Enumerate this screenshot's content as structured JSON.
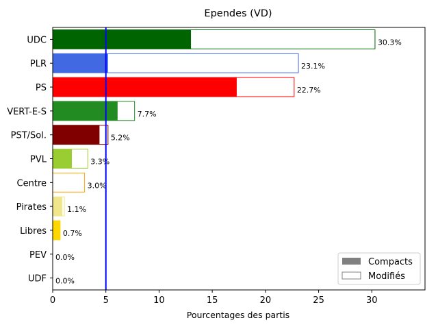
{
  "chart_data": {
    "type": "bar",
    "orientation": "horizontal",
    "title": "Ependes (VD)",
    "xlabel": "Pourcentages des partis",
    "ylabel": "",
    "xlim": [
      0,
      35
    ],
    "xticks": [
      0,
      5,
      10,
      15,
      20,
      25,
      30
    ],
    "threshold_line": {
      "x": 5,
      "color": "#0000ff"
    },
    "categories": [
      "UDC",
      "PLR",
      "PS",
      "VERT-E-S",
      "PST/Sol.",
      "PVL",
      "Centre",
      "Pirates",
      "Libres",
      "PEV",
      "UDF"
    ],
    "series": [
      {
        "name": "Compacts",
        "values": [
          13.0,
          5.2,
          17.3,
          6.1,
          4.4,
          1.8,
          0.0,
          0.9,
          0.7,
          0.0,
          0.0
        ]
      },
      {
        "name": "Modifiés",
        "values": [
          30.3,
          23.1,
          22.7,
          7.7,
          5.2,
          3.3,
          3.0,
          1.1,
          0.7,
          0.0,
          0.0
        ]
      }
    ],
    "value_labels": [
      "30.3%",
      "23.1%",
      "22.7%",
      "7.7%",
      "5.2%",
      "3.3%",
      "3.0%",
      "1.1%",
      "0.7%",
      "0.0%",
      "0.0%"
    ],
    "colors": [
      "#006400",
      "#4169e1",
      "#ff0000",
      "#228b22",
      "#800000",
      "#9acd32",
      "#ffa500",
      "#f0e68c",
      "#ffd700",
      "#ffff00",
      "#8b4513"
    ],
    "legend": {
      "position": "lower-right",
      "items": [
        {
          "label": "Compacts",
          "style": "filled",
          "color": "#808080"
        },
        {
          "label": "Modifiés",
          "style": "outline",
          "color": "#808080"
        }
      ]
    },
    "grid": false
  }
}
